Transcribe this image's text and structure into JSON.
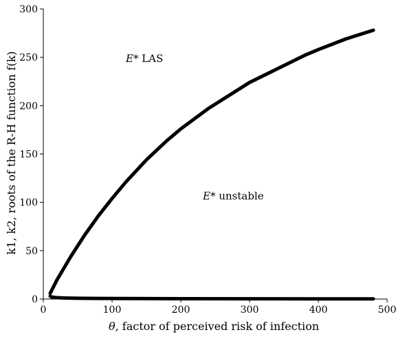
{
  "chart_data": {
    "type": "line",
    "title": "",
    "xlabel_symbol": "θ",
    "xlabel": ", factor of perceived risk of infection",
    "ylabel": "k1, k2, roots of the R-H function f(k)",
    "xlim": [
      0,
      500
    ],
    "ylim": [
      0,
      300
    ],
    "xticks": [
      0,
      100,
      200,
      300,
      400,
      500
    ],
    "yticks": [
      0,
      50,
      100,
      150,
      200,
      250,
      300
    ],
    "grid": false,
    "legend": "none",
    "line_color": "#000000",
    "series": [
      {
        "x": [
          10,
          20,
          40,
          60,
          80,
          100,
          120,
          150,
          180,
          200,
          240,
          280,
          300,
          340,
          380,
          400,
          440,
          480
        ],
        "y": [
          6,
          20,
          44,
          66,
          86,
          104,
          121,
          144,
          164,
          176,
          197,
          215,
          224,
          238,
          252,
          258,
          269,
          278
        ]
      },
      {
        "x": [
          10,
          12,
          15,
          20,
          30,
          50,
          80,
          120,
          200,
          300,
          400,
          480
        ],
        "y": [
          3,
          2.2,
          1.8,
          1.4,
          1.1,
          0.8,
          0.6,
          0.5,
          0.35,
          0.25,
          0.2,
          0.18
        ]
      }
    ],
    "annotations": [
      {
        "symbol": "E*",
        "text": " LAS",
        "x": 120,
        "y": 245
      },
      {
        "symbol": "E*",
        "text": " unstable",
        "x": 232,
        "y": 103
      }
    ]
  }
}
